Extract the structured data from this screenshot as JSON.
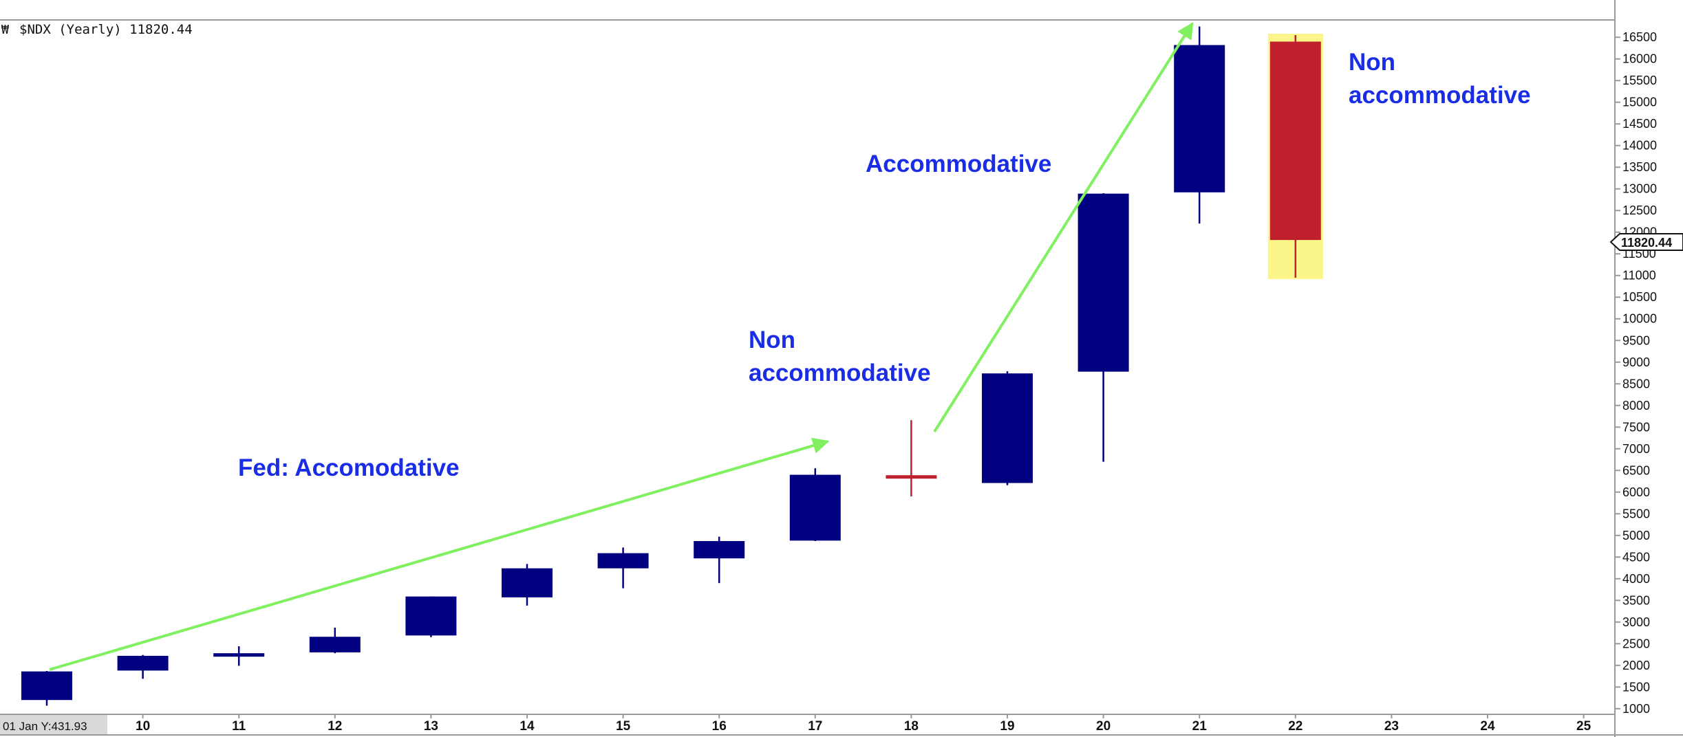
{
  "header": {
    "symbol_label": "$NDX (Yearly) 11820.44"
  },
  "crosshair": {
    "date_readout": "01 Jan Y:431.93"
  },
  "price_tag": "11820.44",
  "annotations": [
    {
      "text": "Fed: Accomodative"
    },
    {
      "lines": [
        "Non",
        "accommodative"
      ]
    },
    {
      "text": "Accommodative"
    },
    {
      "lines": [
        "Non",
        "accommodative"
      ]
    }
  ],
  "colors": {
    "up_candle": "#000080",
    "down_candle": "#c0202e",
    "highlight": "#fcf58a",
    "arrow": "#80f060",
    "annotation_text": "#1a2de6",
    "axis_text": "#111111",
    "gridline": "#999999"
  },
  "chart_data": {
    "type": "candlestick",
    "title": "$NDX (Yearly) 11820.44",
    "x_ticks": [
      "10",
      "11",
      "12",
      "13",
      "14",
      "15",
      "16",
      "17",
      "18",
      "19",
      "20",
      "21",
      "22",
      "23",
      "24",
      "25"
    ],
    "y_ticks": [
      1000,
      1500,
      2000,
      2500,
      3000,
      3500,
      4000,
      4500,
      5000,
      5500,
      6000,
      6500,
      7000,
      7500,
      8000,
      8500,
      9000,
      9500,
      10000,
      10500,
      11000,
      11500,
      12000,
      12500,
      13000,
      13500,
      14000,
      14500,
      15000,
      15500,
      16000,
      16500
    ],
    "ylim": [
      870,
      16900
    ],
    "y_axis_side": "right",
    "grid": false,
    "last_price": 11820.44,
    "candles": [
      {
        "year": "09",
        "open": 1200,
        "high": 1870,
        "low": 1070,
        "close": 1860
      },
      {
        "year": "10",
        "open": 1880,
        "high": 2240,
        "low": 1690,
        "close": 2220
      },
      {
        "year": "11",
        "open": 2220,
        "high": 2440,
        "low": 1990,
        "close": 2280
      },
      {
        "year": "12",
        "open": 2300,
        "high": 2870,
        "low": 2280,
        "close": 2660
      },
      {
        "year": "13",
        "open": 2690,
        "high": 3590,
        "low": 2650,
        "close": 3590
      },
      {
        "year": "14",
        "open": 3570,
        "high": 4340,
        "low": 3380,
        "close": 4240
      },
      {
        "year": "15",
        "open": 4240,
        "high": 4720,
        "low": 3780,
        "close": 4590
      },
      {
        "year": "16",
        "open": 4470,
        "high": 4970,
        "low": 3900,
        "close": 4870
      },
      {
        "year": "17",
        "open": 4880,
        "high": 6550,
        "low": 4870,
        "close": 6400
      },
      {
        "year": "18",
        "open": 6390,
        "high": 7660,
        "low": 5900,
        "close": 6330
      },
      {
        "year": "19",
        "open": 6210,
        "high": 8790,
        "low": 6160,
        "close": 8740
      },
      {
        "year": "20",
        "open": 8780,
        "high": 12900,
        "low": 6700,
        "close": 12890
      },
      {
        "year": "21",
        "open": 12920,
        "high": 16750,
        "low": 12200,
        "close": 16320
      },
      {
        "year": "22",
        "open": 16400,
        "high": 16550,
        "low": 10950,
        "close": 11820
      }
    ],
    "highlight_candle": "22"
  }
}
